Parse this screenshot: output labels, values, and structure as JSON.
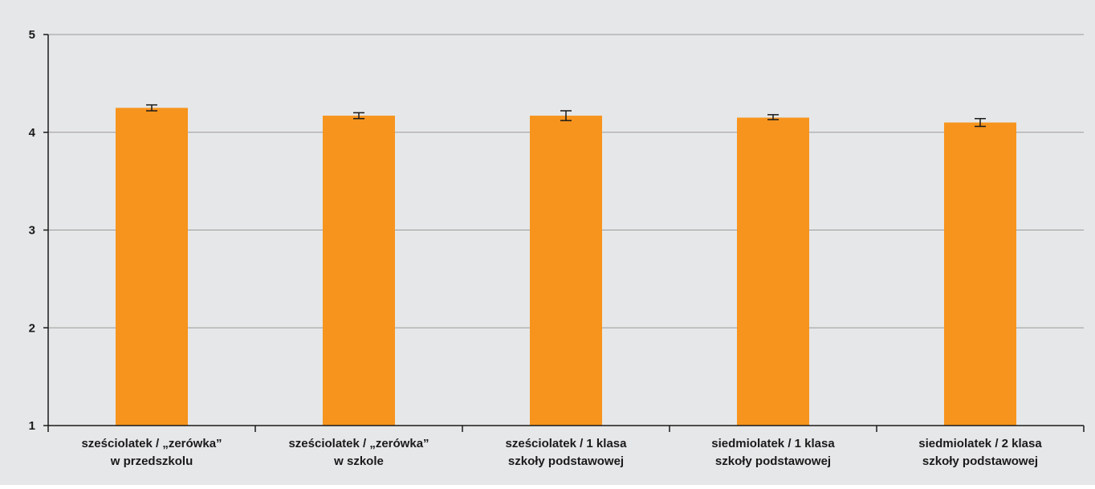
{
  "chart_data": {
    "type": "bar",
    "title": "",
    "xlabel": "",
    "ylabel": "",
    "ylim": [
      1,
      5
    ],
    "yticks": [
      1,
      2,
      3,
      4,
      5
    ],
    "grid": true,
    "legend": "none",
    "categories": [
      [
        "sześciolatek / „zerówka”",
        "w przedszkolu"
      ],
      [
        "sześciolatek / „zerówka”",
        "w szkole"
      ],
      [
        "sześciolatek / 1 klasa",
        "szkoły podstawowej"
      ],
      [
        "siedmiolatek / 1 klasa",
        "szkoły podstawowej"
      ],
      [
        "siedmiolatek / 2 klasa",
        "szkoły podstawowej"
      ]
    ],
    "series": [
      {
        "values": [
          4.25,
          4.17,
          4.17,
          4.15,
          4.1
        ],
        "error_low": [
          4.22,
          4.14,
          4.12,
          4.13,
          4.06
        ],
        "error_high": [
          4.28,
          4.2,
          4.22,
          4.18,
          4.14
        ]
      }
    ],
    "colors": {
      "bar": "#f7941d",
      "background": "#e6e7e8",
      "grid": "#9a9a9a",
      "axis": "#1a1a1a",
      "error": "#1a1a1a"
    }
  }
}
